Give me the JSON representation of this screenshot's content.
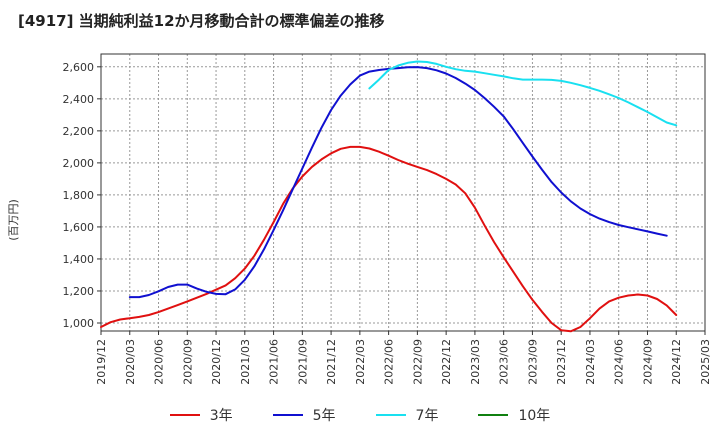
{
  "title": "[4917]  当期純利益12か月移動合計の標準偏差の推移",
  "chart_data": {
    "type": "line",
    "ylabel": "(百万円)",
    "xlabel": "",
    "ylim": [
      950,
      2680
    ],
    "yticks": [
      1000,
      1200,
      1400,
      1600,
      1800,
      2000,
      2200,
      2400,
      2600
    ],
    "ytick_labels": [
      "1,000",
      "1,200",
      "1,400",
      "1,600",
      "1,800",
      "2,000",
      "2,200",
      "2,400",
      "2,600"
    ],
    "x_categories": [
      "2019/12",
      "2020/03",
      "2020/06",
      "2020/09",
      "2020/12",
      "2021/03",
      "2021/06",
      "2021/09",
      "2021/12",
      "2022/03",
      "2022/06",
      "2022/09",
      "2022/12",
      "2023/03",
      "2023/06",
      "2023/09",
      "2023/12",
      "2024/03",
      "2024/06",
      "2024/09",
      "2024/12",
      "2025/03"
    ],
    "grid": true,
    "legend_position": "bottom",
    "series": [
      {
        "name": "3年",
        "color": "#e01010",
        "points": [
          [
            "2019/12",
            975
          ],
          [
            "2020/01",
            1005
          ],
          [
            "2020/02",
            1022
          ],
          [
            "2020/03",
            1030
          ],
          [
            "2020/04",
            1038
          ],
          [
            "2020/05",
            1050
          ],
          [
            "2020/06",
            1068
          ],
          [
            "2020/07",
            1090
          ],
          [
            "2020/08",
            1112
          ],
          [
            "2020/09",
            1135
          ],
          [
            "2020/10",
            1158
          ],
          [
            "2020/11",
            1182
          ],
          [
            "2020/12",
            1208
          ],
          [
            "2021/01",
            1235
          ],
          [
            "2021/02",
            1280
          ],
          [
            "2021/03",
            1340
          ],
          [
            "2021/04",
            1420
          ],
          [
            "2021/05",
            1520
          ],
          [
            "2021/06",
            1630
          ],
          [
            "2021/07",
            1745
          ],
          [
            "2021/08",
            1840
          ],
          [
            "2021/09",
            1915
          ],
          [
            "2021/10",
            1975
          ],
          [
            "2021/11",
            2022
          ],
          [
            "2021/12",
            2060
          ],
          [
            "2022/01",
            2088
          ],
          [
            "2022/02",
            2100
          ],
          [
            "2022/03",
            2100
          ],
          [
            "2022/04",
            2090
          ],
          [
            "2022/05",
            2070
          ],
          [
            "2022/06",
            2045
          ],
          [
            "2022/07",
            2018
          ],
          [
            "2022/08",
            1995
          ],
          [
            "2022/09",
            1975
          ],
          [
            "2022/10",
            1955
          ],
          [
            "2022/11",
            1930
          ],
          [
            "2022/12",
            1900
          ],
          [
            "2023/01",
            1865
          ],
          [
            "2023/02",
            1810
          ],
          [
            "2023/03",
            1720
          ],
          [
            "2023/04",
            1610
          ],
          [
            "2023/05",
            1505
          ],
          [
            "2023/06",
            1410
          ],
          [
            "2023/07",
            1320
          ],
          [
            "2023/08",
            1230
          ],
          [
            "2023/09",
            1145
          ],
          [
            "2023/10",
            1070
          ],
          [
            "2023/11",
            1000
          ],
          [
            "2023/12",
            955
          ],
          [
            "2024/01",
            948
          ],
          [
            "2024/02",
            975
          ],
          [
            "2024/03",
            1030
          ],
          [
            "2024/04",
            1090
          ],
          [
            "2024/05",
            1135
          ],
          [
            "2024/06",
            1158
          ],
          [
            "2024/07",
            1172
          ],
          [
            "2024/08",
            1178
          ],
          [
            "2024/09",
            1172
          ],
          [
            "2024/10",
            1150
          ],
          [
            "2024/11",
            1110
          ],
          [
            "2024/12",
            1050
          ]
        ]
      },
      {
        "name": "5年",
        "color": "#1010d0",
        "points": [
          [
            "2020/03",
            1162
          ],
          [
            "2020/04",
            1162
          ],
          [
            "2020/05",
            1175
          ],
          [
            "2020/06",
            1198
          ],
          [
            "2020/07",
            1225
          ],
          [
            "2020/08",
            1240
          ],
          [
            "2020/09",
            1240
          ],
          [
            "2020/10",
            1215
          ],
          [
            "2020/11",
            1195
          ],
          [
            "2020/12",
            1182
          ],
          [
            "2021/01",
            1180
          ],
          [
            "2021/02",
            1210
          ],
          [
            "2021/03",
            1270
          ],
          [
            "2021/04",
            1355
          ],
          [
            "2021/05",
            1460
          ],
          [
            "2021/06",
            1580
          ],
          [
            "2021/07",
            1705
          ],
          [
            "2021/08",
            1835
          ],
          [
            "2021/09",
            1965
          ],
          [
            "2021/10",
            2095
          ],
          [
            "2021/11",
            2220
          ],
          [
            "2021/12",
            2330
          ],
          [
            "2022/01",
            2420
          ],
          [
            "2022/02",
            2490
          ],
          [
            "2022/03",
            2545
          ],
          [
            "2022/04",
            2570
          ],
          [
            "2022/05",
            2580
          ],
          [
            "2022/06",
            2587
          ],
          [
            "2022/07",
            2592
          ],
          [
            "2022/08",
            2597
          ],
          [
            "2022/09",
            2598
          ],
          [
            "2022/10",
            2592
          ],
          [
            "2022/11",
            2578
          ],
          [
            "2022/12",
            2558
          ],
          [
            "2023/01",
            2530
          ],
          [
            "2023/02",
            2495
          ],
          [
            "2023/03",
            2455
          ],
          [
            "2023/04",
            2405
          ],
          [
            "2023/05",
            2350
          ],
          [
            "2023/06",
            2290
          ],
          [
            "2023/07",
            2210
          ],
          [
            "2023/08",
            2125
          ],
          [
            "2023/09",
            2040
          ],
          [
            "2023/10",
            1958
          ],
          [
            "2023/11",
            1880
          ],
          [
            "2023/12",
            1815
          ],
          [
            "2024/01",
            1760
          ],
          [
            "2024/02",
            1715
          ],
          [
            "2024/03",
            1680
          ],
          [
            "2024/04",
            1652
          ],
          [
            "2024/05",
            1630
          ],
          [
            "2024/06",
            1612
          ],
          [
            "2024/07",
            1598
          ],
          [
            "2024/08",
            1585
          ],
          [
            "2024/09",
            1572
          ],
          [
            "2024/10",
            1558
          ],
          [
            "2024/11",
            1545
          ]
        ]
      },
      {
        "name": "7年",
        "color": "#19e0f0",
        "points": [
          [
            "2022/04",
            2465
          ],
          [
            "2022/05",
            2520
          ],
          [
            "2022/06",
            2580
          ],
          [
            "2022/07",
            2608
          ],
          [
            "2022/08",
            2625
          ],
          [
            "2022/09",
            2633
          ],
          [
            "2022/10",
            2630
          ],
          [
            "2022/11",
            2618
          ],
          [
            "2022/12",
            2600
          ],
          [
            "2023/01",
            2585
          ],
          [
            "2023/02",
            2575
          ],
          [
            "2023/03",
            2570
          ],
          [
            "2023/04",
            2560
          ],
          [
            "2023/05",
            2550
          ],
          [
            "2023/06",
            2540
          ],
          [
            "2023/07",
            2528
          ],
          [
            "2023/08",
            2520
          ],
          [
            "2023/09",
            2520
          ],
          [
            "2023/10",
            2520
          ],
          [
            "2023/11",
            2518
          ],
          [
            "2023/12",
            2512
          ],
          [
            "2024/01",
            2500
          ],
          [
            "2024/02",
            2485
          ],
          [
            "2024/03",
            2468
          ],
          [
            "2024/04",
            2450
          ],
          [
            "2024/05",
            2428
          ],
          [
            "2024/06",
            2405
          ],
          [
            "2024/07",
            2378
          ],
          [
            "2024/08",
            2348
          ],
          [
            "2024/09",
            2318
          ],
          [
            "2024/10",
            2285
          ],
          [
            "2024/11",
            2252
          ],
          [
            "2024/12",
            2235
          ]
        ]
      },
      {
        "name": "10年",
        "color": "#108010",
        "points": []
      }
    ]
  }
}
